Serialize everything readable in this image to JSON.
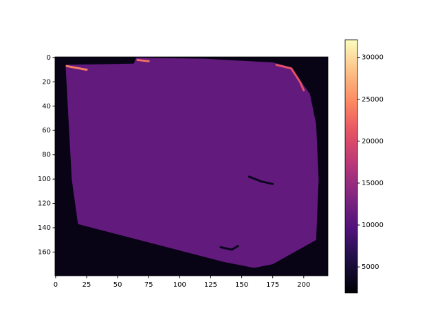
{
  "chart_data": {
    "type": "heatmap",
    "colormap": "magma",
    "xlim": [
      -0.5,
      219.5
    ],
    "ylim": [
      179.5,
      -0.5
    ],
    "xticks": [
      0,
      25,
      50,
      75,
      100,
      125,
      150,
      175,
      200
    ],
    "yticks": [
      0,
      20,
      40,
      60,
      80,
      100,
      120,
      140,
      160
    ],
    "clim": [
      1900,
      32100
    ],
    "cticks": [
      5000,
      10000,
      15000,
      20000,
      25000,
      30000
    ],
    "background": 3000,
    "regions": [
      {
        "polygon": [
          [
            8,
            6
          ],
          [
            63,
            5
          ],
          [
            65,
            0
          ],
          [
            120,
            1
          ],
          [
            175,
            4
          ],
          [
            190,
            8
          ],
          [
            198,
            20
          ],
          [
            205,
            30
          ],
          [
            210,
            55
          ],
          [
            212,
            100
          ],
          [
            210,
            150
          ],
          [
            175,
            170
          ],
          [
            160,
            173
          ],
          [
            135,
            168
          ],
          [
            18,
            137
          ],
          [
            13,
            100
          ]
        ],
        "value": 11000
      }
    ],
    "streaks": [
      {
        "points": [
          [
            9,
            7
          ],
          [
            14,
            8
          ],
          [
            25,
            10
          ]
        ],
        "value": 24000
      },
      {
        "points": [
          [
            66,
            2
          ],
          [
            75,
            3
          ]
        ],
        "value": 23000
      },
      {
        "points": [
          [
            178,
            6
          ],
          [
            190,
            9
          ],
          [
            197,
            20
          ],
          [
            200,
            27
          ]
        ],
        "value": 21000
      },
      {
        "points": [
          [
            156,
            98
          ],
          [
            166,
            102
          ],
          [
            175,
            104
          ]
        ],
        "value": 3500
      },
      {
        "points": [
          [
            133,
            156
          ],
          [
            142,
            158
          ],
          [
            147,
            155
          ]
        ],
        "value": 3500
      }
    ]
  }
}
